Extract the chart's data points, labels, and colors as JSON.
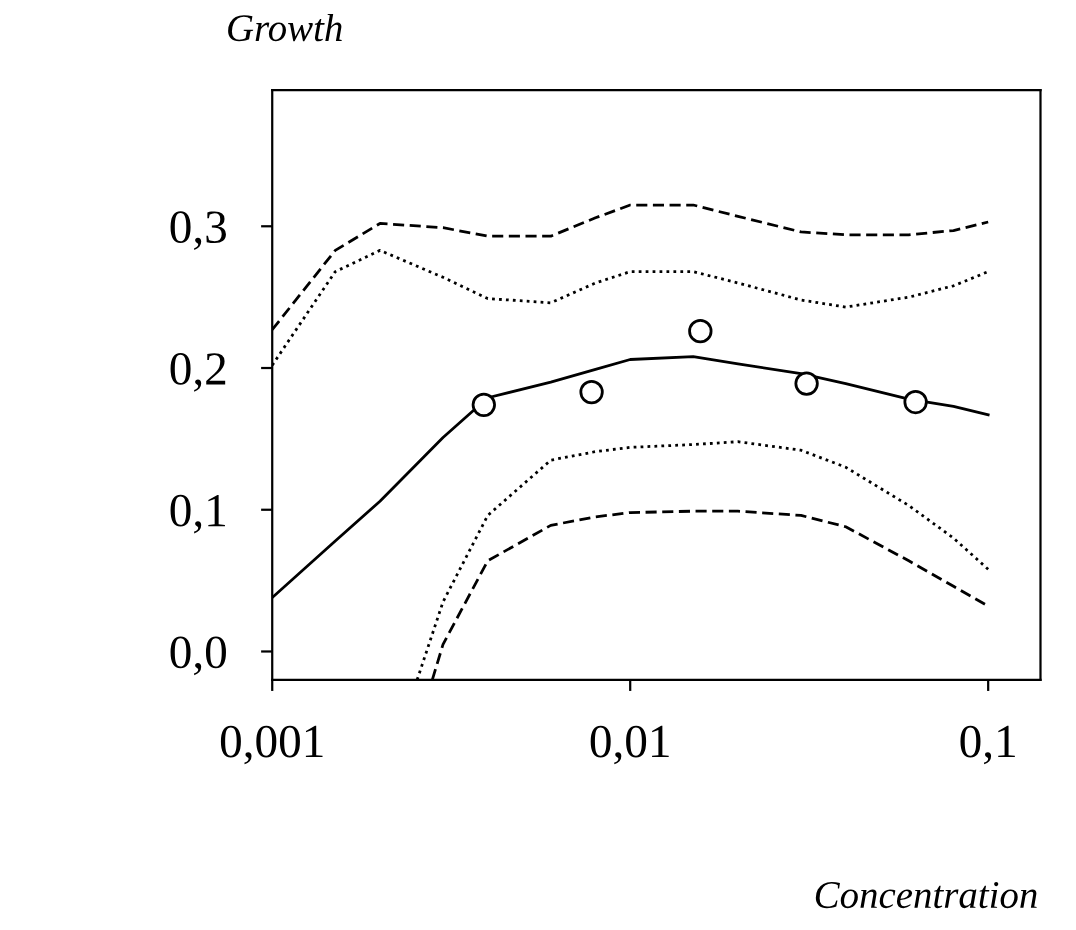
{
  "chart_data": {
    "type": "line",
    "title": "Growth",
    "xlabel": "Concentration",
    "log": "x",
    "xlim": [
      0.001,
      0.14
    ],
    "xticks": [
      {
        "value": 0.001,
        "label": "0,001"
      },
      {
        "value": 0.01,
        "label": "0,01"
      },
      {
        "value": 0.1,
        "label": "0,1"
      }
    ],
    "ylim": [
      -0.02,
      0.396
    ],
    "yticks": [
      {
        "value": 0,
        "label": "0,0"
      },
      {
        "value": 0.1,
        "label": "0,1"
      },
      {
        "value": 0.2,
        "label": "0,2"
      },
      {
        "value": 0.3,
        "label": "0,3"
      }
    ],
    "grid": false,
    "series": [
      {
        "line_style": "dashed",
        "color": "#000000",
        "x": [
          0.001,
          0.0015,
          0.002,
          0.003,
          0.004,
          0.006,
          0.008,
          0.01,
          0.015,
          0.02,
          0.03,
          0.04,
          0.06,
          0.08,
          0.1
        ],
        "values": [
          0.227,
          0.283,
          0.302,
          0.299,
          0.293,
          0.293,
          0.306,
          0.315,
          0.315,
          0.307,
          0.296,
          0.294,
          0.294,
          0.297,
          0.303
        ]
      },
      {
        "line_style": "dotted",
        "color": "#000000",
        "x": [
          0.001,
          0.0015,
          0.002,
          0.003,
          0.004,
          0.006,
          0.008,
          0.01,
          0.015,
          0.02,
          0.03,
          0.04,
          0.06,
          0.08,
          0.1
        ],
        "values": [
          0.202,
          0.268,
          0.283,
          0.264,
          0.249,
          0.246,
          0.26,
          0.268,
          0.268,
          0.26,
          0.248,
          0.243,
          0.25,
          0.258,
          0.268
        ]
      },
      {
        "line_style": "solid",
        "color": "#000000",
        "x": [
          0.001,
          0.0015,
          0.002,
          0.003,
          0.004,
          0.006,
          0.008,
          0.01,
          0.015,
          0.02,
          0.03,
          0.04,
          0.06,
          0.08,
          0.1
        ],
        "values": [
          0.038,
          0.078,
          0.106,
          0.151,
          0.179,
          0.19,
          0.199,
          0.206,
          0.208,
          0.203,
          0.196,
          0.189,
          0.178,
          0.173,
          0.167
        ]
      },
      {
        "line_style": "dotted",
        "color": "#000000",
        "x": [
          0.00254,
          0.003,
          0.004,
          0.006,
          0.008,
          0.01,
          0.015,
          0.02,
          0.03,
          0.04,
          0.06,
          0.08,
          0.1
        ],
        "values": [
          -0.02,
          0.035,
          0.096,
          0.135,
          0.141,
          0.144,
          0.146,
          0.148,
          0.142,
          0.13,
          0.103,
          0.08,
          0.058
        ]
      },
      {
        "line_style": "dashed",
        "color": "#000000",
        "x": [
          0.0028,
          0.003,
          0.004,
          0.006,
          0.008,
          0.01,
          0.015,
          0.02,
          0.03,
          0.04,
          0.06,
          0.08,
          0.1
        ],
        "values": [
          -0.02,
          0.005,
          0.064,
          0.089,
          0.095,
          0.098,
          0.099,
          0.099,
          0.096,
          0.088,
          0.064,
          0.046,
          0.032
        ]
      },
      {
        "type": "scatter",
        "marker": "circle",
        "color": "#000000",
        "x": [
          0.0039,
          0.0078,
          0.0157,
          0.0311,
          0.0627
        ],
        "values": [
          0.174,
          0.183,
          0.226,
          0.189,
          0.176
        ]
      }
    ]
  }
}
